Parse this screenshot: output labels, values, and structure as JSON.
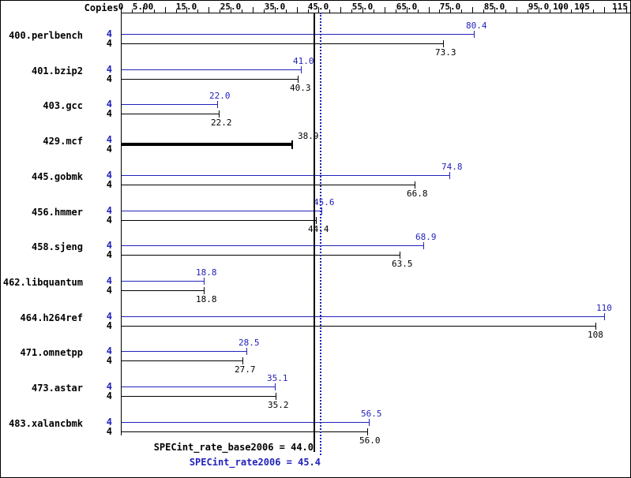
{
  "chart_data": {
    "type": "bar",
    "orientation": "horizontal",
    "copies_label": "Copies",
    "colors": {
      "peak": "#2222bb",
      "base": "#000000"
    },
    "axis": {
      "min": 0,
      "max": 115,
      "minor_tick_step": 2.5,
      "major_tick_step": 5,
      "tick_labels": [
        {
          "label": "0",
          "value": 0
        },
        {
          "label": "5.00",
          "value": 5
        },
        {
          "label": "15.0",
          "value": 15
        },
        {
          "label": "25.0",
          "value": 25
        },
        {
          "label": "35.0",
          "value": 35
        },
        {
          "label": "45.0",
          "value": 45
        },
        {
          "label": "55.0",
          "value": 55
        },
        {
          "label": "65.0",
          "value": 65
        },
        {
          "label": "75.0",
          "value": 75
        },
        {
          "label": "85.0",
          "value": 85
        },
        {
          "label": "95.0",
          "value": 95
        },
        {
          "label": "100",
          "value": 100
        },
        {
          "label": "105",
          "value": 105
        },
        {
          "label": "115",
          "value": 115
        }
      ]
    },
    "benchmarks": [
      {
        "name": "400.perlbench",
        "copies": "4",
        "rate": 80.4,
        "rate_label": "80.4",
        "base": 73.3,
        "base_label": "73.3"
      },
      {
        "name": "401.bzip2",
        "copies": "4",
        "rate": 41.0,
        "rate_label": "41.0",
        "base": 40.3,
        "base_label": "40.3"
      },
      {
        "name": "403.gcc",
        "copies": "4",
        "rate": 22.0,
        "rate_label": "22.0",
        "base": 22.2,
        "base_label": "22.2"
      },
      {
        "name": "429.mcf",
        "copies": "4",
        "rate": 38.9,
        "rate_label": "38.9",
        "base": 38.9,
        "base_label": "38.9",
        "single_bar": true
      },
      {
        "name": "445.gobmk",
        "copies": "4",
        "rate": 74.8,
        "rate_label": "74.8",
        "base": 66.8,
        "base_label": "66.8"
      },
      {
        "name": "456.hmmer",
        "copies": "4",
        "rate": 45.6,
        "rate_label": "45.6",
        "base": 44.4,
        "base_label": "44.4"
      },
      {
        "name": "458.sjeng",
        "copies": "4",
        "rate": 68.9,
        "rate_label": "68.9",
        "base": 63.5,
        "base_label": "63.5"
      },
      {
        "name": "462.libquantum",
        "copies": "4",
        "rate": 18.8,
        "rate_label": "18.8",
        "base": 18.8,
        "base_label": "18.8"
      },
      {
        "name": "464.h264ref",
        "copies": "4",
        "rate": 110,
        "rate_label": "110",
        "base": 108,
        "base_label": "108"
      },
      {
        "name": "471.omnetpp",
        "copies": "4",
        "rate": 28.5,
        "rate_label": "28.5",
        "base": 27.7,
        "base_label": "27.7"
      },
      {
        "name": "473.astar",
        "copies": "4",
        "rate": 35.1,
        "rate_label": "35.1",
        "base": 35.2,
        "base_label": "35.2"
      },
      {
        "name": "483.xalancbmk",
        "copies": "4",
        "rate": 56.5,
        "rate_label": "56.5",
        "base": 56.0,
        "base_label": "56.0"
      }
    ],
    "summary": {
      "base": {
        "text": "SPECint_rate_base2006 = 44.0",
        "value": 44.0
      },
      "peak": {
        "text": "SPECint_rate2006 = 45.4",
        "value": 45.4
      }
    }
  }
}
